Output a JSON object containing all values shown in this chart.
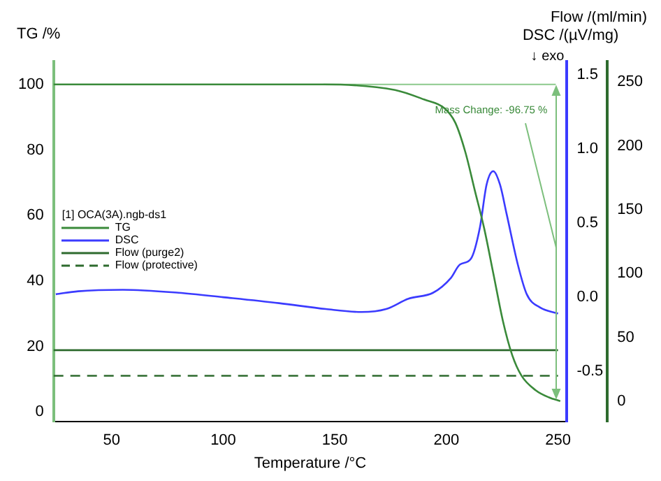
{
  "chart_data": {
    "type": "line",
    "xlabel": "Temperature /°C",
    "ylabel": "TG /%",
    "y2label": "DSC /(µV/mg)",
    "y3label": "Flow /(ml/min)",
    "legend_title": "[1] OCA(3A).ngb-ds1",
    "legend": "left",
    "grid": false,
    "marker": "none",
    "annotations": [
      "↓ exo",
      "Mass Change: -96.75 %"
    ],
    "xlim": [
      24,
      254
    ],
    "xticks": [
      50,
      100,
      150,
      200,
      250
    ],
    "ylim": [
      -3,
      107
    ],
    "yticks": [
      0,
      20,
      40,
      60,
      80,
      100
    ],
    "y2lim": [
      -0.84,
      1.59
    ],
    "y2ticks": [
      -0.5,
      {
        "value": 0,
        "label": "0.0"
      },
      0.5,
      {
        "value": 1,
        "label": "1.0"
      },
      1.5
    ],
    "y3lim": [
      -16,
      266
    ],
    "y3ticks": [
      0,
      50,
      100,
      150,
      200,
      250
    ],
    "ref_lines": [
      {
        "axis": "y",
        "value": 100,
        "color": "#8cc98c"
      }
    ],
    "series": [
      {
        "name": "TG",
        "color": "#3a8a3a",
        "axis": "y",
        "x": [
          24,
          80,
          145,
          177,
          190,
          199,
          204,
          208.5,
          212.7,
          216.9,
          221.1,
          225.3,
          229.4,
          233.6,
          240,
          246,
          251
        ],
        "values": [
          100,
          100,
          100,
          98.3,
          95.4,
          92.8,
          88.3,
          79.3,
          67.7,
          56.1,
          42,
          27.8,
          17.5,
          11.1,
          6.6,
          4.4,
          3.3
        ]
      },
      {
        "name": "DSC",
        "color": "#3b3bff",
        "axis": "y2",
        "x": [
          25,
          35,
          55,
          80,
          100,
          125,
          146,
          162,
          173,
          183,
          194,
          202,
          206,
          211,
          215,
          218,
          221,
          224,
          227,
          232,
          236,
          242,
          250
        ],
        "values": [
          0.02,
          0.04,
          0.05,
          0.03,
          0,
          -0.04,
          -0.08,
          -0.1,
          -0.08,
          -0.01,
          0.03,
          0.13,
          0.22,
          0.26,
          0.47,
          0.76,
          0.85,
          0.76,
          0.56,
          0.22,
          0.02,
          -0.07,
          -0.11
        ]
      },
      {
        "name": "Flow (purge2)",
        "color": "#2e6b2e",
        "axis": "y3",
        "x": [
          24,
          250
        ],
        "values": [
          40,
          40
        ]
      },
      {
        "name": "Flow (protective)",
        "color": "#2e6b2e",
        "axis": "y3",
        "line_style": "dashed",
        "x": [
          24,
          250
        ],
        "values": [
          20,
          20
        ]
      }
    ]
  }
}
